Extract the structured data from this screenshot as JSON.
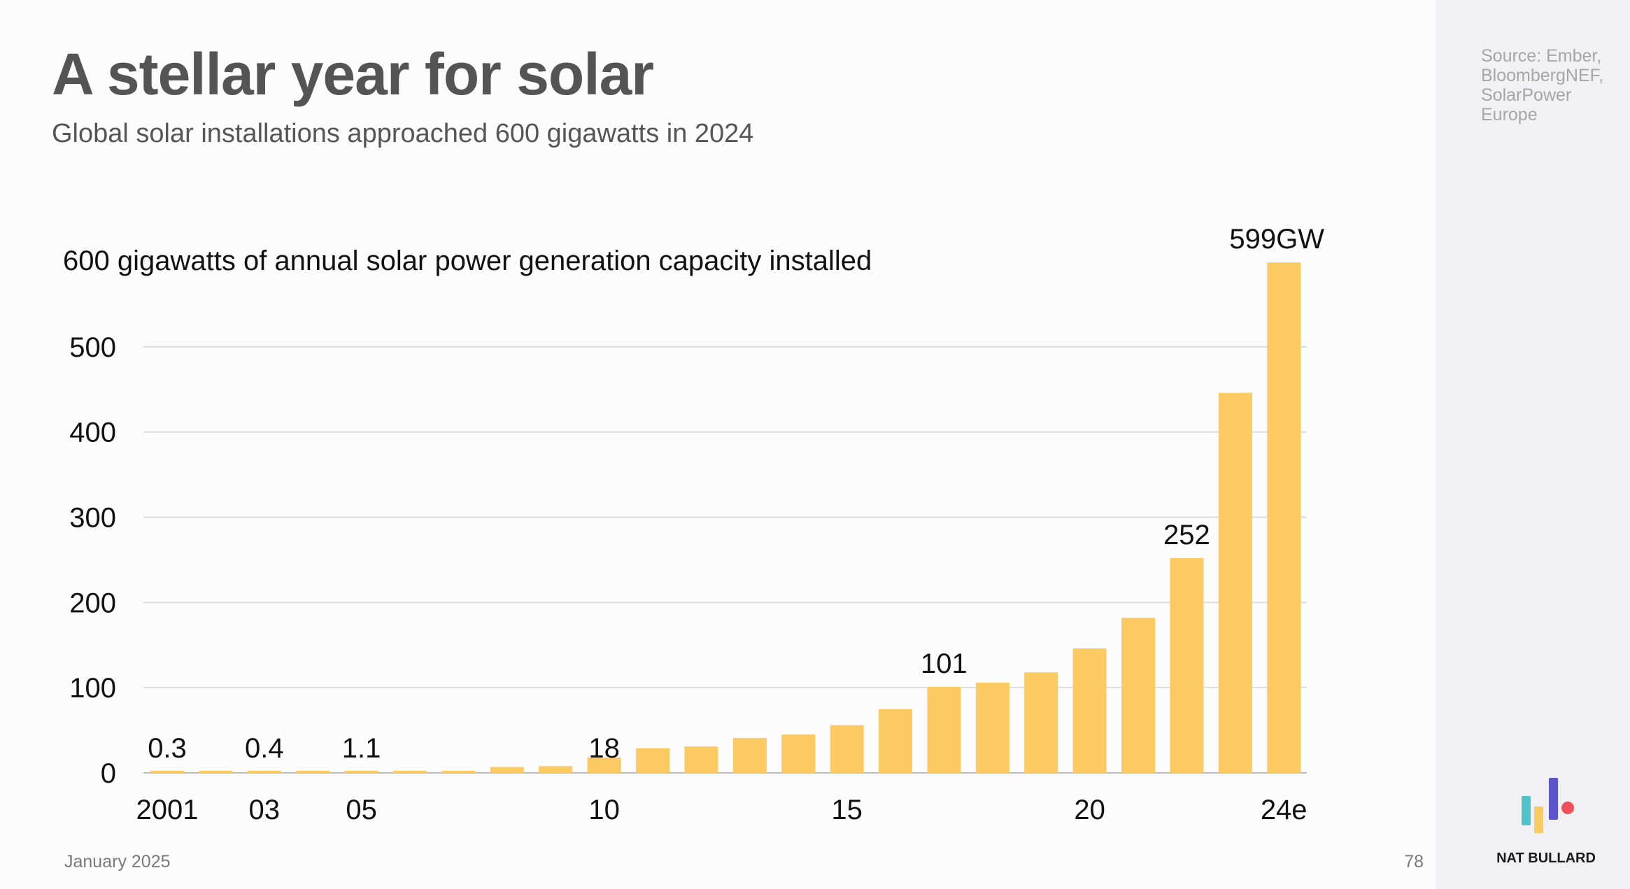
{
  "header": {
    "title": "A stellar year for solar",
    "subtitle": "Global solar installations approached 600 gigawatts in 2024"
  },
  "sidebar": {
    "source": "Source: Ember, BloombergNEF, SolarPower Europe",
    "brand": "NAT BULLARD"
  },
  "footer": {
    "date": "January 2025",
    "page_number": "78"
  },
  "colors": {
    "bar": "#fcca63",
    "grid": "#dcdcdc",
    "logo_teal": "#52c2c9",
    "logo_yellow": "#fcca63",
    "logo_indigo": "#5a55c8",
    "logo_red": "#f0505a"
  },
  "chart_data": {
    "type": "bar",
    "title": "600 gigawatts of annual solar power generation capacity installed",
    "categories": [
      "2001",
      "2002",
      "2003",
      "2004",
      "2005",
      "2006",
      "2007",
      "2008",
      "2009",
      "2010",
      "2011",
      "2012",
      "2013",
      "2014",
      "2015",
      "2016",
      "2017",
      "2018",
      "2019",
      "2020",
      "2021",
      "2022",
      "2023",
      "2024e"
    ],
    "values": [
      0.3,
      0.3,
      0.4,
      1.1,
      1.1,
      1.5,
      2.5,
      7,
      8,
      18,
      29,
      31,
      41,
      45,
      56,
      75,
      101,
      106,
      118,
      146,
      182,
      252,
      446,
      599
    ],
    "data_labels": [
      {
        "index": 0,
        "text": "0.3"
      },
      {
        "index": 2,
        "text": "0.4"
      },
      {
        "index": 4,
        "text": "1.1"
      },
      {
        "index": 9,
        "text": "18"
      },
      {
        "index": 16,
        "text": "101"
      },
      {
        "index": 21,
        "text": "252"
      },
      {
        "index": 23,
        "text": "599GW"
      }
    ],
    "x_tick_labels": [
      {
        "index": 0,
        "text": "2001"
      },
      {
        "index": 2,
        "text": "03"
      },
      {
        "index": 4,
        "text": "05"
      },
      {
        "index": 9,
        "text": "10"
      },
      {
        "index": 14,
        "text": "15"
      },
      {
        "index": 19,
        "text": "20"
      },
      {
        "index": 23,
        "text": "24e"
      }
    ],
    "y_ticks": [
      0,
      100,
      200,
      300,
      400,
      500
    ],
    "ylim": [
      0,
      600
    ],
    "grid": true,
    "legend": "none"
  }
}
